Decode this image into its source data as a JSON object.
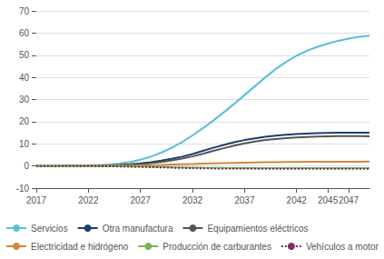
{
  "chart_data": {
    "type": "line",
    "xlim": [
      2017,
      2049
    ],
    "xticks": [
      2017,
      2022,
      2027,
      2032,
      2037,
      2042,
      2045,
      2047
    ],
    "ylim": [
      -10,
      70
    ],
    "yticks": [
      -10,
      0,
      10,
      20,
      30,
      40,
      50,
      60,
      70
    ],
    "grid": true,
    "legend": "bottom",
    "x": [
      2017,
      2018,
      2019,
      2020,
      2021,
      2022,
      2023,
      2024,
      2025,
      2026,
      2027,
      2028,
      2029,
      2030,
      2031,
      2032,
      2033,
      2034,
      2035,
      2036,
      2037,
      2038,
      2039,
      2040,
      2041,
      2042,
      2043,
      2044,
      2045,
      2046,
      2047,
      2048,
      2049
    ],
    "series": [
      {
        "name": "Servicios",
        "color": "#5bbed6",
        "line_style": "solid",
        "values": [
          0,
          0.0,
          0.0,
          0.05,
          0.1,
          0.2,
          0.4,
          0.7,
          1.1,
          1.8,
          2.8,
          4.2,
          6.0,
          8.2,
          10.8,
          13.8,
          17.0,
          20.5,
          24.2,
          28.0,
          32.0,
          36.0,
          40.0,
          43.8,
          47.0,
          49.8,
          52.0,
          53.8,
          55.2,
          56.5,
          57.5,
          58.3,
          58.8
        ]
      },
      {
        "name": "Otra manufactura",
        "color": "#1c3f6e",
        "line_style": "solid",
        "values": [
          0,
          0.0,
          0.0,
          0.02,
          0.05,
          0.1,
          0.18,
          0.3,
          0.5,
          0.8,
          1.2,
          1.7,
          2.4,
          3.2,
          4.2,
          5.4,
          6.8,
          8.2,
          9.5,
          10.7,
          11.7,
          12.5,
          13.2,
          13.7,
          14.1,
          14.4,
          14.6,
          14.8,
          14.9,
          15.0,
          15.0,
          15.0,
          15.0
        ]
      },
      {
        "name": "Equipamientos eléctricos",
        "color": "#555555",
        "line_style": "solid",
        "values": [
          0,
          0.0,
          0.0,
          0.01,
          0.03,
          0.07,
          0.13,
          0.22,
          0.38,
          0.6,
          0.9,
          1.3,
          1.8,
          2.5,
          3.3,
          4.3,
          5.5,
          6.8,
          8.0,
          9.2,
          10.2,
          11.0,
          11.7,
          12.2,
          12.6,
          12.9,
          13.1,
          13.3,
          13.4,
          13.5,
          13.5,
          13.5,
          13.4
        ]
      },
      {
        "name": "Electricidad e hidrógeno",
        "color": "#d4863a",
        "line_style": "solid",
        "values": [
          0,
          0.0,
          0.0,
          0.01,
          0.02,
          0.04,
          0.06,
          0.09,
          0.13,
          0.18,
          0.25,
          0.35,
          0.47,
          0.62,
          0.77,
          0.92,
          1.07,
          1.2,
          1.32,
          1.42,
          1.52,
          1.6,
          1.67,
          1.73,
          1.78,
          1.82,
          1.85,
          1.87,
          1.9,
          1.92,
          1.93,
          1.94,
          1.95
        ]
      },
      {
        "name": "Producción de carburantes",
        "color": "#7ab55c",
        "line_style": "solid",
        "values": [
          0,
          0.0,
          0.0,
          -0.01,
          -0.02,
          -0.04,
          -0.07,
          -0.1,
          -0.15,
          -0.21,
          -0.28,
          -0.37,
          -0.47,
          -0.58,
          -0.67,
          -0.75,
          -0.82,
          -0.87,
          -0.91,
          -0.94,
          -0.97,
          -0.99,
          -1.0,
          -1.01,
          -1.01,
          -1.02,
          -1.02,
          -1.02,
          -1.02,
          -1.02,
          -1.02,
          -1.02,
          -1.02
        ]
      },
      {
        "name": "Vehículos a motor",
        "color": "#7b3060",
        "line_style": "dotted",
        "values": [
          0,
          0.0,
          0.0,
          -0.01,
          -0.03,
          -0.06,
          -0.1,
          -0.15,
          -0.22,
          -0.3,
          -0.4,
          -0.52,
          -0.65,
          -0.8,
          -0.9,
          -1.0,
          -1.07,
          -1.13,
          -1.17,
          -1.2,
          -1.22,
          -1.23,
          -1.24,
          -1.25,
          -1.25,
          -1.26,
          -1.26,
          -1.26,
          -1.26,
          -1.26,
          -1.26,
          -1.26,
          -1.26
        ]
      }
    ]
  }
}
